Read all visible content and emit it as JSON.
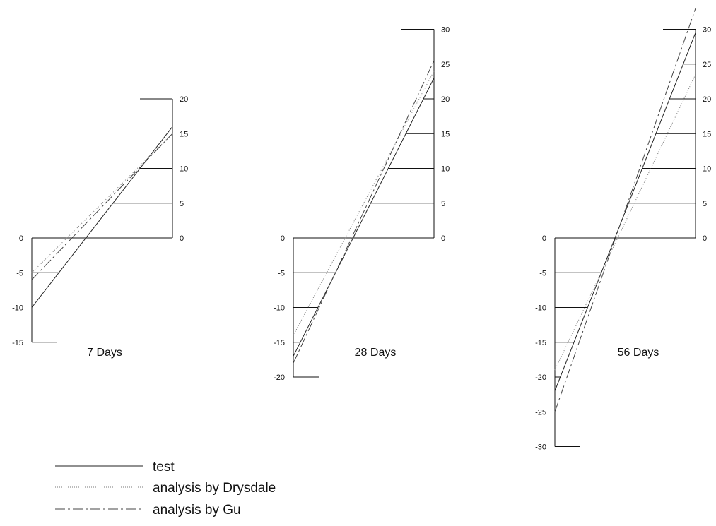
{
  "chart_data": [
    {
      "type": "line",
      "title": "7 Days",
      "left_ticks": [
        0,
        -5,
        -10,
        -15
      ],
      "right_ticks": [
        20,
        15,
        10,
        5,
        0
      ],
      "levels": [
        5,
        10,
        -5
      ],
      "series": [
        {
          "name": "test",
          "values": [
            -10,
            16
          ]
        },
        {
          "name": "analysis by Drysdale",
          "values": [
            -5,
            15
          ]
        },
        {
          "name": "analysis by Gu",
          "values": [
            -6,
            15
          ]
        }
      ]
    },
    {
      "type": "line",
      "title": "28 Days",
      "left_ticks": [
        0,
        -5,
        -10,
        -15,
        -20
      ],
      "right_ticks": [
        30,
        25,
        20,
        15,
        10,
        5,
        0
      ],
      "levels": [
        5,
        10,
        15,
        20,
        -5,
        -10,
        -15
      ],
      "series": [
        {
          "name": "test",
          "values": [
            -17,
            23
          ]
        },
        {
          "name": "analysis by Drysdale",
          "values": [
            -14,
            24
          ]
        },
        {
          "name": "analysis by Gu",
          "values": [
            -18,
            25.5
          ]
        }
      ]
    },
    {
      "type": "line",
      "title": "56 Days",
      "left_ticks": [
        0,
        -5,
        -10,
        -15,
        -20,
        -25,
        -30
      ],
      "right_ticks": [
        30,
        25,
        20,
        15,
        10,
        5,
        0
      ],
      "levels": [
        5,
        10,
        15,
        20,
        25,
        -5,
        -10,
        -15,
        -20
      ],
      "series": [
        {
          "name": "test",
          "values": [
            -22,
            29.5
          ]
        },
        {
          "name": "analysis by Drysdale",
          "values": [
            -19,
            23.5
          ]
        },
        {
          "name": "analysis by Gu",
          "values": [
            -25,
            33
          ]
        }
      ]
    }
  ],
  "legend": [
    {
      "label": "test",
      "style": "solid"
    },
    {
      "label": "analysis by Drysdale",
      "style": "dotted"
    },
    {
      "label": "analysis by Gu",
      "style": "dash-dot"
    }
  ]
}
